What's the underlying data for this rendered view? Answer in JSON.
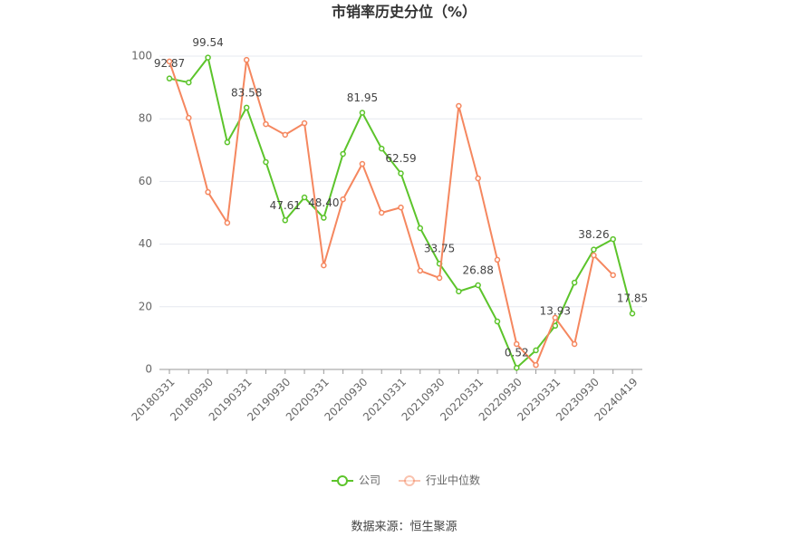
{
  "chart_data": {
    "type": "line",
    "title": "市销率历史分位（%）",
    "source": "数据来源：恒生聚源",
    "categories": [
      "20180331",
      null,
      "20180930",
      null,
      "20190331",
      null,
      "20190930",
      null,
      "20200331",
      null,
      "20200930",
      null,
      "20210331",
      null,
      "20210930",
      null,
      "20220331",
      null,
      "20220930",
      null,
      "20230331",
      null,
      "20230930",
      null,
      "20240419"
    ],
    "series": [
      {
        "name": "公司",
        "color": "#5cc42b",
        "values": [
          92.87,
          91.6,
          99.54,
          72.5,
          83.58,
          66.2,
          47.61,
          54.9,
          48.4,
          68.8,
          81.95,
          70.5,
          62.59,
          45.1,
          33.75,
          24.9,
          26.88,
          15.3,
          0.52,
          6.1,
          13.93,
          27.7,
          38.26,
          41.6,
          17.85
        ],
        "value_labels": [
          "92.87",
          null,
          "99.54",
          null,
          "83.58",
          null,
          "47.61",
          null,
          "48.40",
          null,
          "81.95",
          null,
          "62.59",
          null,
          "33.75",
          null,
          "26.88",
          null,
          "0.52",
          null,
          "13.93",
          null,
          "38.26",
          null,
          "17.85"
        ]
      },
      {
        "name": "行业中位数",
        "color": "#f5875f",
        "values": [
          98.3,
          80.3,
          56.6,
          46.8,
          98.8,
          78.3,
          74.9,
          78.6,
          33.2,
          54.3,
          65.6,
          50.0,
          51.7,
          31.5,
          29.2,
          84.1,
          61.0,
          35.0,
          8.1,
          1.4,
          16.5,
          8.1,
          36.4,
          30.1,
          null
        ]
      }
    ],
    "ylim": [
      0,
      100
    ],
    "yticks": [
      0,
      20,
      40,
      60,
      80,
      100
    ],
    "grid": true
  }
}
